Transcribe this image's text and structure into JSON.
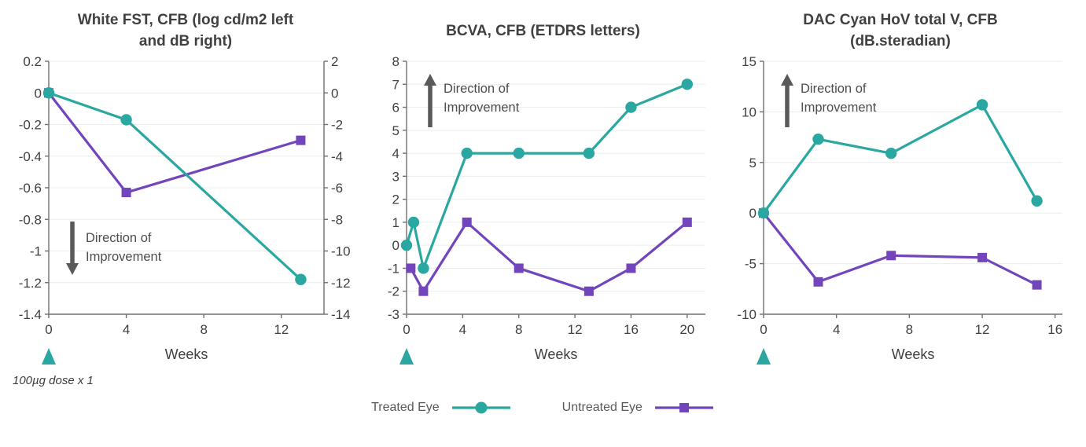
{
  "colors": {
    "treated": "#2aa7a1",
    "untreated": "#7345bd",
    "axis_line": "#707070",
    "grid_line": "#ececec",
    "tick_label": "#404040",
    "title_text": "#404040",
    "arrow": "#595959",
    "annotation_text": "#4d4d4d",
    "dose_marker": "#2aa7a1",
    "legend_text": "#595959"
  },
  "legend": {
    "items": [
      {
        "label": "Treated Eye",
        "marker": "circle",
        "color": "#2aa7a1"
      },
      {
        "label": "Untreated Eye",
        "marker": "square",
        "color": "#7345bd"
      }
    ]
  },
  "dose_note": "100µg dose x 1",
  "chart_data": [
    {
      "type": "line",
      "title": "White FST, CFB (log cd/m2 left and dB right)",
      "title_lines": [
        "White FST, CFB (log cd/m2 left",
        "and dB right)"
      ],
      "xlabel": "Weeks",
      "x_ticks": [
        0,
        4,
        8,
        12
      ],
      "xlim": [
        0,
        14.2
      ],
      "y_ticks": [
        0.2,
        0,
        -0.2,
        -0.4,
        -0.6,
        -0.8,
        -1,
        -1.2,
        -1.4
      ],
      "ylim": [
        -1.4,
        0.2
      ],
      "y2_ticks": [
        2,
        0,
        -2,
        -4,
        -6,
        -8,
        -10,
        -12,
        -14
      ],
      "y2lim": [
        -14,
        2
      ],
      "grid": true,
      "improvement": {
        "direction": "down",
        "lines": [
          "Direction of",
          "Improvement"
        ]
      },
      "dose_marker_x": 0,
      "series": [
        {
          "name": "Treated Eye",
          "marker": "circle",
          "color": "#2aa7a1",
          "x": [
            0,
            4,
            13
          ],
          "y": [
            0,
            -0.17,
            -1.18
          ]
        },
        {
          "name": "Untreated Eye",
          "marker": "square",
          "color": "#7345bd",
          "x": [
            0,
            4,
            13
          ],
          "y": [
            0,
            -0.63,
            -0.3
          ]
        }
      ]
    },
    {
      "type": "line",
      "title": "BCVA, CFB (ETDRS letters)",
      "title_lines": [
        "BCVA, CFB (ETDRS letters)"
      ],
      "xlabel": "Weeks",
      "x_ticks": [
        0,
        4,
        8,
        12,
        16,
        20
      ],
      "xlim": [
        0,
        21.3
      ],
      "y_ticks": [
        8,
        7,
        6,
        5,
        4,
        3,
        2,
        1,
        0,
        -1,
        -2,
        -3
      ],
      "ylim": [
        -3,
        8
      ],
      "grid": true,
      "improvement": {
        "direction": "up",
        "lines": [
          "Direction of",
          "Improvement"
        ]
      },
      "dose_marker_x": 0,
      "series": [
        {
          "name": "Treated Eye",
          "marker": "circle",
          "color": "#2aa7a1",
          "x": [
            0,
            0.5,
            1.2,
            4.3,
            8,
            13,
            16,
            20
          ],
          "y": [
            0,
            1,
            -1,
            4,
            4,
            4,
            6,
            7
          ]
        },
        {
          "name": "Untreated Eye",
          "marker": "square",
          "color": "#7345bd",
          "x": [
            0.3,
            1.2,
            4.3,
            8,
            13,
            16,
            20
          ],
          "y": [
            -1,
            -2,
            1,
            -1,
            -2,
            -1,
            1
          ]
        }
      ]
    },
    {
      "type": "line",
      "title": "DAC Cyan HoV total V, CFB (dB.steradian)",
      "title_lines": [
        "DAC Cyan HoV total V, CFB",
        "(dB.steradian)"
      ],
      "xlabel": "Weeks",
      "x_ticks": [
        0,
        4,
        8,
        12,
        16
      ],
      "xlim": [
        0,
        16.4
      ],
      "y_ticks": [
        15,
        10,
        5,
        0,
        -5,
        -10
      ],
      "ylim": [
        -10,
        15
      ],
      "grid": true,
      "improvement": {
        "direction": "up",
        "lines": [
          "Direction of",
          "Improvement"
        ]
      },
      "dose_marker_x": 0,
      "series": [
        {
          "name": "Treated Eye",
          "marker": "circle",
          "color": "#2aa7a1",
          "x": [
            0,
            3,
            7,
            12,
            15
          ],
          "y": [
            0,
            7.3,
            5.9,
            10.7,
            1.2
          ]
        },
        {
          "name": "Untreated Eye",
          "marker": "square",
          "color": "#7345bd",
          "x": [
            0,
            3,
            7,
            12,
            15
          ],
          "y": [
            0,
            -6.8,
            -4.2,
            -4.4,
            -7.1
          ]
        }
      ]
    }
  ]
}
